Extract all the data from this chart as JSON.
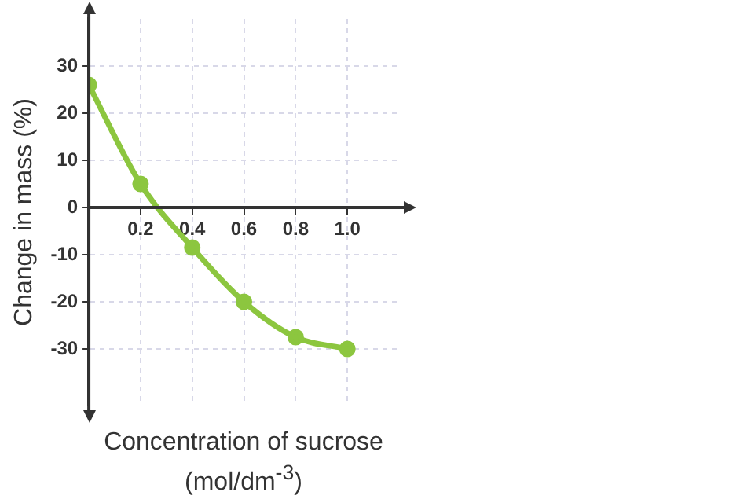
{
  "chart_data": {
    "type": "line",
    "xlabel": "Concentration of sucrose (mol/dm$^{-3}$)",
    "ylabel": "Change in mass (%)",
    "x": [
      0,
      0.2,
      0.4,
      0.6,
      0.8,
      1.0
    ],
    "series": [
      {
        "color": "#8cc63f",
        "values": [
          26,
          5,
          -8.5,
          -20,
          -27.5,
          -30
        ]
      }
    ],
    "xlim": [
      0,
      1.2
    ],
    "xticks": [
      0.2,
      0.4,
      0.6,
      0.8,
      {
        "value": 1.0,
        "label": "1.0"
      }
    ],
    "ylim": [
      -42,
      40
    ],
    "yticks": [
      -30,
      -20,
      -10,
      0,
      10,
      20,
      30
    ],
    "grid": true,
    "marker": "circle",
    "line_style": "solid"
  }
}
